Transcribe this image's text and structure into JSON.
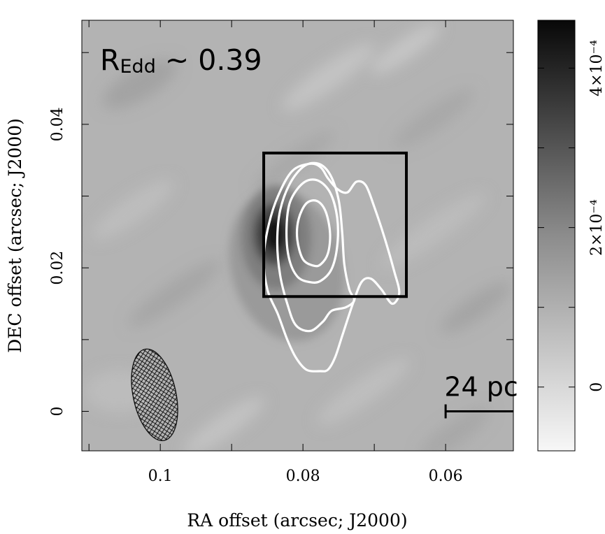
{
  "chart_data": {
    "type": "heatmap",
    "xlabel": "RA offset (arcsec; J2000)",
    "ylabel": "DEC offset (arcsec; J2000)",
    "x_range": [
      0.111,
      0.0505
    ],
    "y_range": [
      -0.0055,
      0.0545
    ],
    "x_ticks": [
      0.1,
      0.08,
      0.06
    ],
    "x_tick_labels": [
      "0.1",
      "0.08",
      "0.06"
    ],
    "y_ticks": [
      0,
      0.02,
      0.04
    ],
    "y_tick_labels": [
      "0",
      "0.02",
      "0.04"
    ],
    "annotation": {
      "main": "R",
      "subscript": "Edd",
      "rest": " ~ 0.39"
    },
    "scale_bar": {
      "label": "24 pc",
      "x_start": 0.06,
      "x_end": 0.05,
      "y": 0.0
    },
    "box": {
      "x_min": 0.0655,
      "x_max": 0.0855,
      "y_min": 0.016,
      "y_max": 0.036
    },
    "beam": {
      "x_center": 0.1008,
      "y_center": 0.0023,
      "major": 0.013,
      "minor": 0.006,
      "hatch": "cross-hatched"
    },
    "peak": {
      "x": 0.0782,
      "y": 0.0245
    },
    "contours": [
      {
        "level": 1,
        "points": [
          [
            0.0776,
            0.0056
          ],
          [
            0.0795,
            0.0058
          ],
          [
            0.081,
            0.0075
          ],
          [
            0.0822,
            0.01
          ],
          [
            0.0835,
            0.0135
          ],
          [
            0.085,
            0.017
          ],
          [
            0.0855,
            0.0215
          ],
          [
            0.0848,
            0.026
          ],
          [
            0.0835,
            0.03
          ],
          [
            0.0815,
            0.0335
          ],
          [
            0.079,
            0.0345
          ],
          [
            0.0775,
            0.034
          ],
          [
            0.0765,
            0.0325
          ],
          [
            0.0752,
            0.031
          ],
          [
            0.0738,
            0.0305
          ],
          [
            0.0725,
            0.032
          ],
          [
            0.0712,
            0.0315
          ],
          [
            0.07,
            0.0285
          ],
          [
            0.0685,
            0.024
          ],
          [
            0.0672,
            0.0195
          ],
          [
            0.0665,
            0.0165
          ],
          [
            0.0675,
            0.015
          ],
          [
            0.069,
            0.017
          ],
          [
            0.0705,
            0.0185
          ],
          [
            0.0718,
            0.018
          ],
          [
            0.073,
            0.015
          ],
          [
            0.0745,
            0.0105
          ],
          [
            0.0755,
            0.0075
          ],
          [
            0.0765,
            0.0058
          ]
        ]
      },
      {
        "level": 2,
        "points": [
          [
            0.079,
            0.0112
          ],
          [
            0.081,
            0.012
          ],
          [
            0.0822,
            0.015
          ],
          [
            0.0832,
            0.019
          ],
          [
            0.0836,
            0.0235
          ],
          [
            0.0832,
            0.028
          ],
          [
            0.0818,
            0.0318
          ],
          [
            0.0798,
            0.0342
          ],
          [
            0.0778,
            0.0345
          ],
          [
            0.0762,
            0.033
          ],
          [
            0.075,
            0.0295
          ],
          [
            0.0745,
            0.025
          ],
          [
            0.0742,
            0.0205
          ],
          [
            0.0735,
            0.017
          ],
          [
            0.0728,
            0.0155
          ],
          [
            0.074,
            0.0145
          ],
          [
            0.076,
            0.014
          ],
          [
            0.0772,
            0.0125
          ]
        ]
      },
      {
        "level": 3,
        "points": [
          [
            0.079,
            0.018
          ],
          [
            0.0808,
            0.0188
          ],
          [
            0.082,
            0.0215
          ],
          [
            0.0823,
            0.0255
          ],
          [
            0.0818,
            0.0292
          ],
          [
            0.08,
            0.0318
          ],
          [
            0.078,
            0.0322
          ],
          [
            0.0762,
            0.0305
          ],
          [
            0.0752,
            0.027
          ],
          [
            0.0752,
            0.023
          ],
          [
            0.076,
            0.0198
          ],
          [
            0.0775,
            0.0182
          ]
        ]
      },
      {
        "level": 4,
        "points": [
          [
            0.0785,
            0.0203
          ],
          [
            0.08,
            0.0212
          ],
          [
            0.0808,
            0.024
          ],
          [
            0.0806,
            0.0268
          ],
          [
            0.0795,
            0.029
          ],
          [
            0.078,
            0.0293
          ],
          [
            0.0768,
            0.0278
          ],
          [
            0.0762,
            0.0248
          ],
          [
            0.0765,
            0.022
          ],
          [
            0.0775,
            0.0205
          ]
        ]
      }
    ],
    "colorbar": {
      "range": [
        -8e-05,
        0.00046
      ],
      "ticks": [
        0,
        0.0002,
        0.0004
      ],
      "tick_labels": [
        "0",
        "2×10⁻⁴",
        "4×10⁻⁴"
      ],
      "cmap": "gray_r"
    },
    "colors": {
      "contour": "#ffffff",
      "box": "#000000",
      "background_gray": "#b0b0b0"
    }
  }
}
